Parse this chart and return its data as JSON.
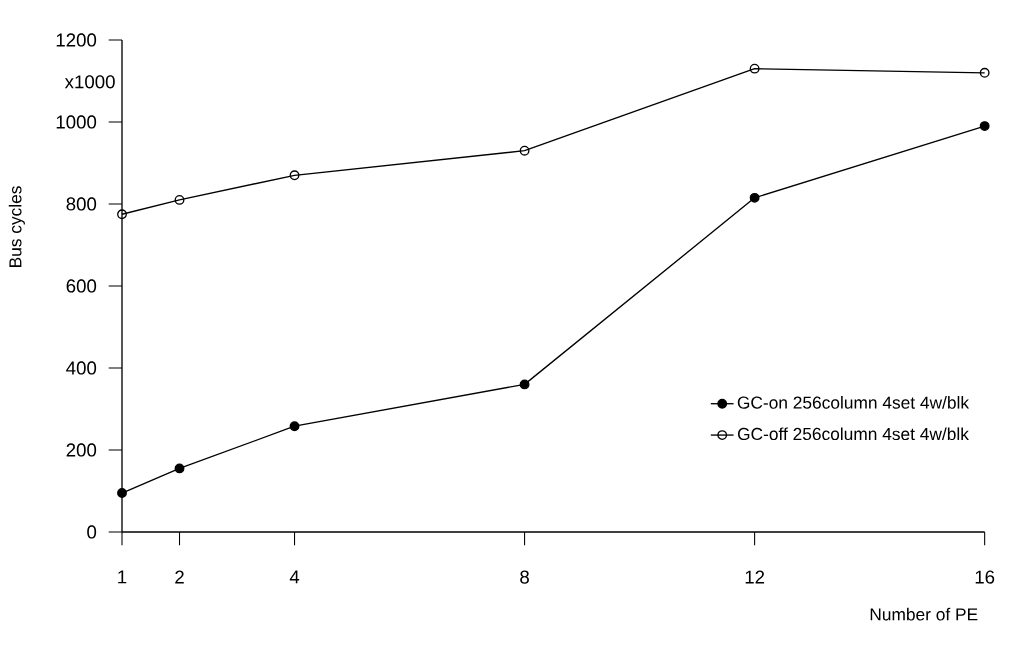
{
  "chart_data": {
    "type": "line",
    "xlabel": "Number of PE",
    "ylabel": "Bus cycles",
    "annotations": [
      "x1000"
    ],
    "x": [
      1,
      2,
      4,
      8,
      12,
      16
    ],
    "series": [
      {
        "name": "GC-on 256column 4set 4w/blk",
        "color": "#000000",
        "values": [
          95,
          155,
          258,
          360,
          815,
          990
        ]
      },
      {
        "name": "GC-off 256column 4set 4w/blk",
        "color": "#000000",
        "values": [
          775,
          810,
          870,
          930,
          1130,
          1120
        ]
      }
    ],
    "xlim": [
      1,
      16
    ],
    "xticks": [
      1,
      2,
      4,
      8,
      12,
      16
    ],
    "ylim": [
      0,
      1200
    ],
    "yticks": [
      0,
      200,
      400,
      600,
      800,
      1000,
      1200
    ],
    "grid": false,
    "legend": "right",
    "marker": "circle",
    "line_style": "solid"
  }
}
